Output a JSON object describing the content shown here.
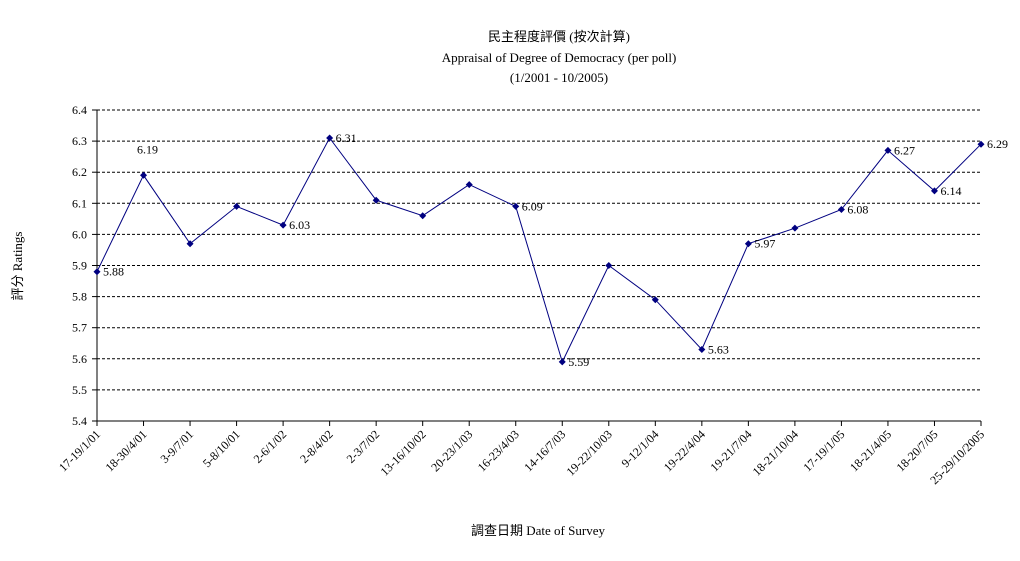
{
  "chart_data": {
    "type": "line",
    "title": "民主程度評價 (按次計算)",
    "subtitle": "Appraisal of Degree of Democracy (per poll)",
    "subtitle2": "(1/2001 - 10/2005)",
    "xlabel": "調查日期 Date of Survey",
    "ylabel": "評分 Ratings",
    "ylim": [
      5.4,
      6.4
    ],
    "ytick_step": 0.1,
    "yticks": [
      "5.4",
      "5.5",
      "5.6",
      "5.7",
      "5.8",
      "5.9",
      "6.0",
      "6.1",
      "6.2",
      "6.3",
      "6.4"
    ],
    "grid": true,
    "categories": [
      "17-19/1/01",
      "18-30/4/01",
      "3-9/7/01",
      "5-8/10/01",
      "2-6/1/02",
      "2-8/4/02",
      "2-3/7/02",
      "13-16/10/02",
      "20-23/1/03",
      "16-23/4/03",
      "14-16/7/03",
      "19-22/10/03",
      "9-12/1/04",
      "19-22/4/04",
      "19-21/7/04",
      "18-21/10/04",
      "17-19/1/05",
      "18-21/4/05",
      "18-20/7/05",
      "25-29/10/2005"
    ],
    "values": [
      5.88,
      6.19,
      5.97,
      6.09,
      6.03,
      6.31,
      6.11,
      6.06,
      6.16,
      6.09,
      5.59,
      5.9,
      5.79,
      5.63,
      5.97,
      6.02,
      6.08,
      6.27,
      6.14,
      6.29
    ],
    "data_labels": [
      "5.88",
      "6.19",
      "",
      "",
      "6.03",
      "6.31",
      "",
      "",
      "",
      "6.09",
      "5.59",
      "",
      "",
      "5.63",
      "5.97",
      "",
      "6.08",
      "6.27",
      "6.14",
      "6.29"
    ],
    "line_color": "#000080",
    "marker_color": "#000080"
  }
}
